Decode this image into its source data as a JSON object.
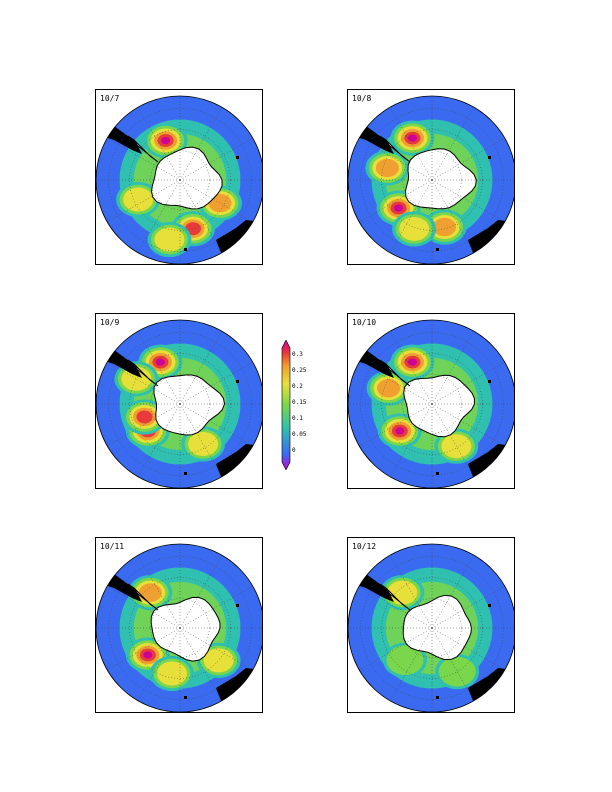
{
  "panels": [
    {
      "label": "10/7",
      "hotspots": [
        {
          "lon": 250,
          "r": 0.5,
          "v": 0.32
        },
        {
          "lon": 75,
          "r": 0.6,
          "v": 0.26
        },
        {
          "lon": 30,
          "r": 0.55,
          "v": 0.24
        },
        {
          "lon": 100,
          "r": 0.72,
          "v": 0.2
        },
        {
          "lon": 155,
          "r": 0.55,
          "v": 0.18
        }
      ]
    },
    {
      "label": "10/8",
      "hotspots": [
        {
          "lon": 245,
          "r": 0.55,
          "v": 0.32
        },
        {
          "lon": 195,
          "r": 0.55,
          "v": 0.24
        },
        {
          "lon": 140,
          "r": 0.52,
          "v": 0.28
        },
        {
          "lon": 75,
          "r": 0.58,
          "v": 0.24
        },
        {
          "lon": 110,
          "r": 0.62,
          "v": 0.2
        }
      ]
    },
    {
      "label": "10/9",
      "hotspots": [
        {
          "lon": 245,
          "r": 0.55,
          "v": 0.33
        },
        {
          "lon": 140,
          "r": 0.5,
          "v": 0.31
        },
        {
          "lon": 160,
          "r": 0.45,
          "v": 0.25
        },
        {
          "lon": 60,
          "r": 0.55,
          "v": 0.2
        },
        {
          "lon": 210,
          "r": 0.6,
          "v": 0.2
        }
      ]
    },
    {
      "label": "10/10",
      "hotspots": [
        {
          "lon": 245,
          "r": 0.55,
          "v": 0.32
        },
        {
          "lon": 140,
          "r": 0.5,
          "v": 0.3
        },
        {
          "lon": 200,
          "r": 0.55,
          "v": 0.22
        },
        {
          "lon": 60,
          "r": 0.58,
          "v": 0.18
        }
      ]
    },
    {
      "label": "10/11",
      "hotspots": [
        {
          "lon": 140,
          "r": 0.5,
          "v": 0.29
        },
        {
          "lon": 230,
          "r": 0.55,
          "v": 0.22
        },
        {
          "lon": 100,
          "r": 0.55,
          "v": 0.18
        },
        {
          "lon": 40,
          "r": 0.6,
          "v": 0.17
        }
      ]
    },
    {
      "label": "10/12",
      "hotspots": [
        {
          "lon": 230,
          "r": 0.55,
          "v": 0.17
        },
        {
          "lon": 130,
          "r": 0.5,
          "v": 0.16
        },
        {
          "lon": 60,
          "r": 0.6,
          "v": 0.14
        }
      ]
    }
  ],
  "colorbar": {
    "ticks": [
      "0.3",
      "0.25",
      "0.2",
      "0.15",
      "0.1",
      "0.05",
      "0"
    ],
    "range": [
      0,
      0.33
    ]
  },
  "colors": {
    "magenta": "#cc0099",
    "red": "#e83a3a",
    "orange": "#f0a030",
    "yellow": "#e8e03a",
    "green": "#7ad64a",
    "teal": "#30c0b0",
    "blue": "#3a6af0",
    "landmass": "#000000"
  }
}
